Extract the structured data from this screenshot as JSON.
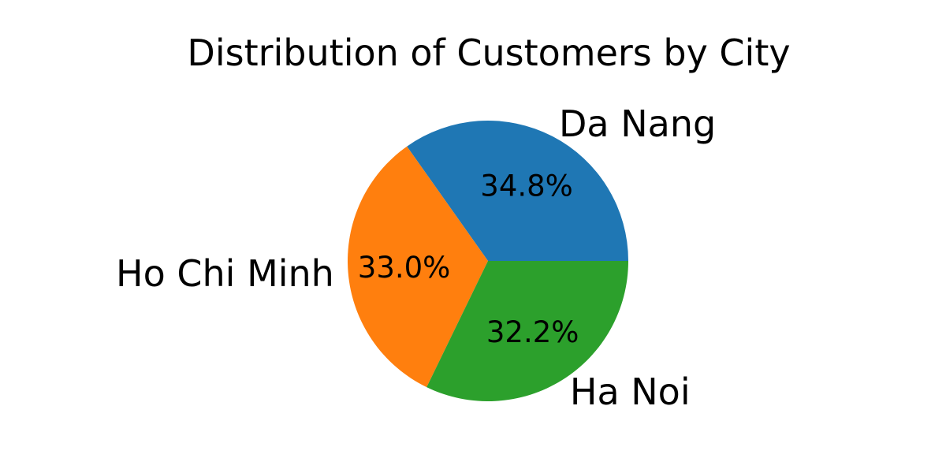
{
  "chart_data": {
    "type": "pie",
    "title": "Distribution of Customers by City",
    "slices": [
      {
        "label": "Da Nang",
        "value": 34.8,
        "pct_label": "34.8%",
        "color": "#1f77b4"
      },
      {
        "label": "Ho Chi Minh",
        "value": 33.0,
        "pct_label": "33.0%",
        "color": "#ff7f0e"
      },
      {
        "label": "Ha Noi",
        "value": 32.2,
        "pct_label": "32.2%",
        "color": "#2ca02c"
      }
    ],
    "start_angle_deg": 0,
    "direction": "counterclockwise",
    "legend": "none"
  }
}
